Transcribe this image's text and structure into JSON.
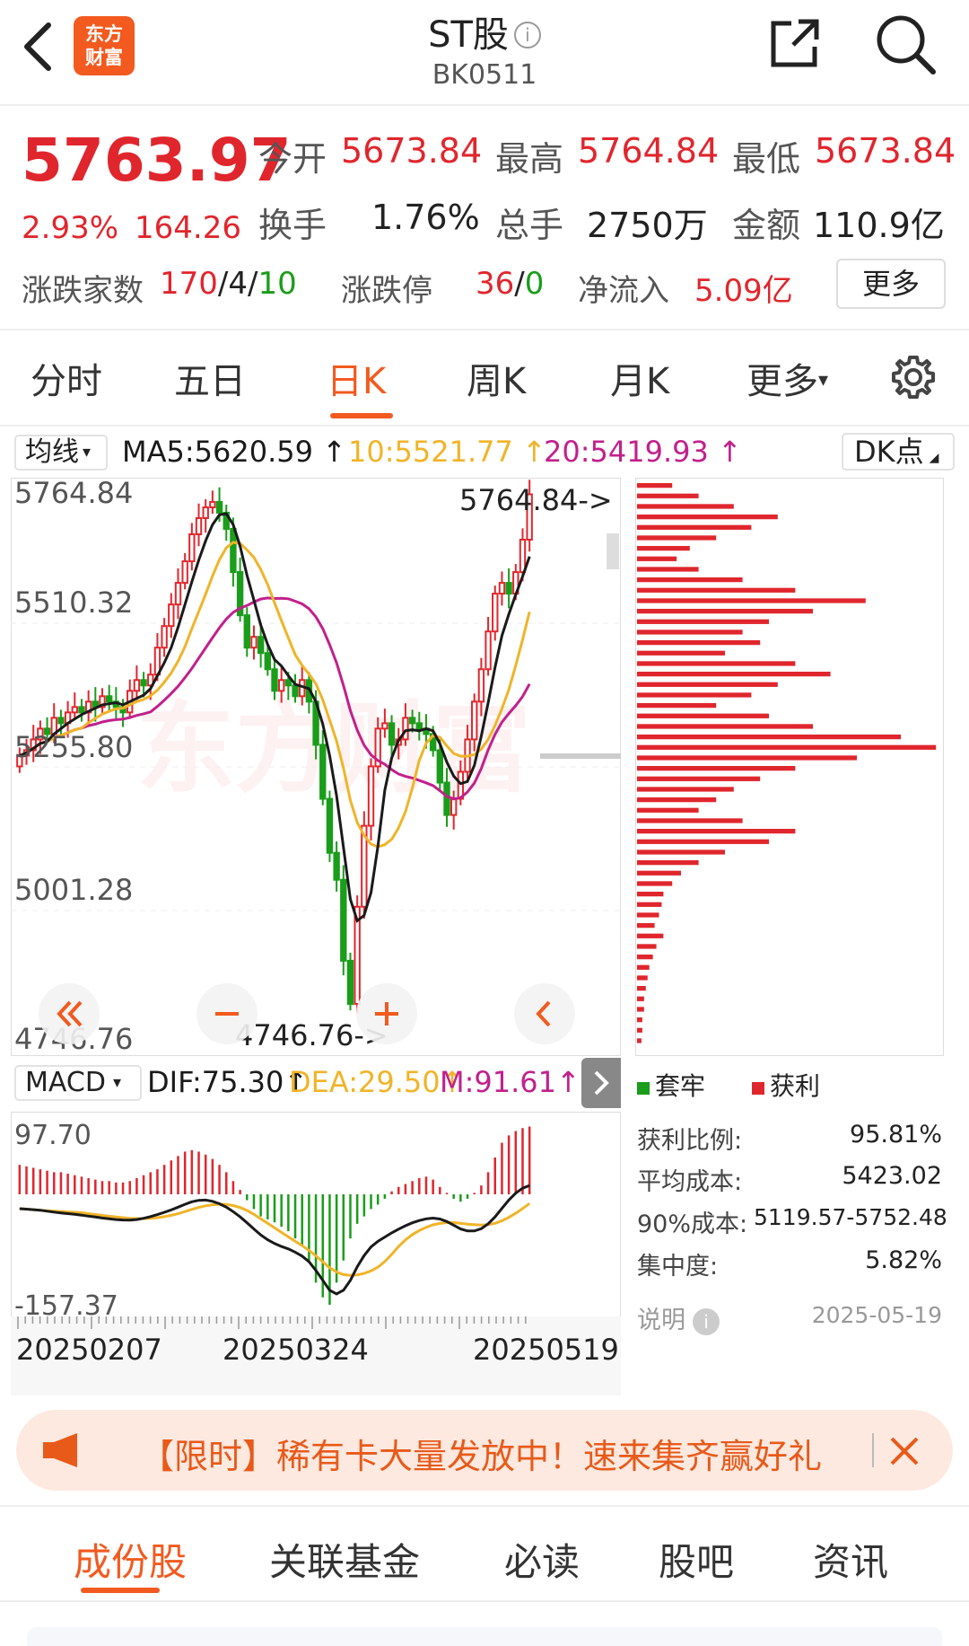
{
  "header": {
    "logo_line1": "东方",
    "logo_line2": "财富",
    "title": "ST股",
    "code": "BK0511"
  },
  "quote": {
    "price": "5763.97",
    "change_pct": "2.93%",
    "change": "164.26",
    "open_label": "今开",
    "open": "5673.84",
    "high_label": "最高",
    "high": "5764.84",
    "low_label": "最低",
    "low": "5673.84",
    "turnover_label": "换手",
    "turnover": "1.76%",
    "volume_label": "总手",
    "volume": "2750万",
    "amount_label": "金额",
    "amount": "110.9亿",
    "breadth_label": "涨跌家数",
    "up": "170",
    "flat": "4",
    "down": "10",
    "limit_label": "涨跌停",
    "limit_up": "36",
    "limit_down": "0",
    "inflow_label": "净流入",
    "inflow": "5.09亿",
    "more": "更多"
  },
  "tabs": [
    "分时",
    "五日",
    "日K",
    "周K",
    "月K",
    "更多"
  ],
  "active_tab": "日K",
  "ma_row": {
    "selector": "均线",
    "ma5": "MA5:5620.59",
    "ma10": "10:5521.77",
    "ma20": "20:5419.93",
    "dk": "DK点"
  },
  "chart_data": {
    "type": "candlestick",
    "y_ticks": [
      "5764.84",
      "5510.32",
      "5255.80",
      "5001.28",
      "4746.76"
    ],
    "high_marker": "5764.84->",
    "low_marker": "4746.76->",
    "x_ticks": [
      "20250207",
      "20250324",
      "20250519"
    ],
    "macd_ticks": [
      "97.70",
      "-157.37"
    ],
    "series_colors": {
      "ma5": "#1a1a1a",
      "ma10": "#f0b429",
      "ma20": "#c2208c",
      "up": "#e0262d",
      "down": "#1a9d1a"
    }
  },
  "macd": {
    "selector": "MACD",
    "dif": "DIF:75.30",
    "dea": "DEA:29.50",
    "m": "M:91.61"
  },
  "chip": {
    "legend_trapped": "套牢",
    "legend_profit": "获利",
    "profit_ratio_label": "获利比例:",
    "profit_ratio": "95.81%",
    "avg_cost_label": "平均成本:",
    "avg_cost": "5423.02",
    "cost90_label": "90%成本:",
    "cost90": "5119.57-5752.48",
    "concentration_label": "集中度:",
    "concentration": "5.82%",
    "note_label": "说明",
    "date": "2025-05-19"
  },
  "banner": {
    "text": "【限时】稀有卡大量发放中！速来集齐赢好礼"
  },
  "bottom_tabs": [
    "成份股",
    "关联基金",
    "必读",
    "股吧",
    "资讯"
  ],
  "colors": {
    "accent": "#f25a1f",
    "up": "#e0262d",
    "down": "#1a9d1a"
  }
}
